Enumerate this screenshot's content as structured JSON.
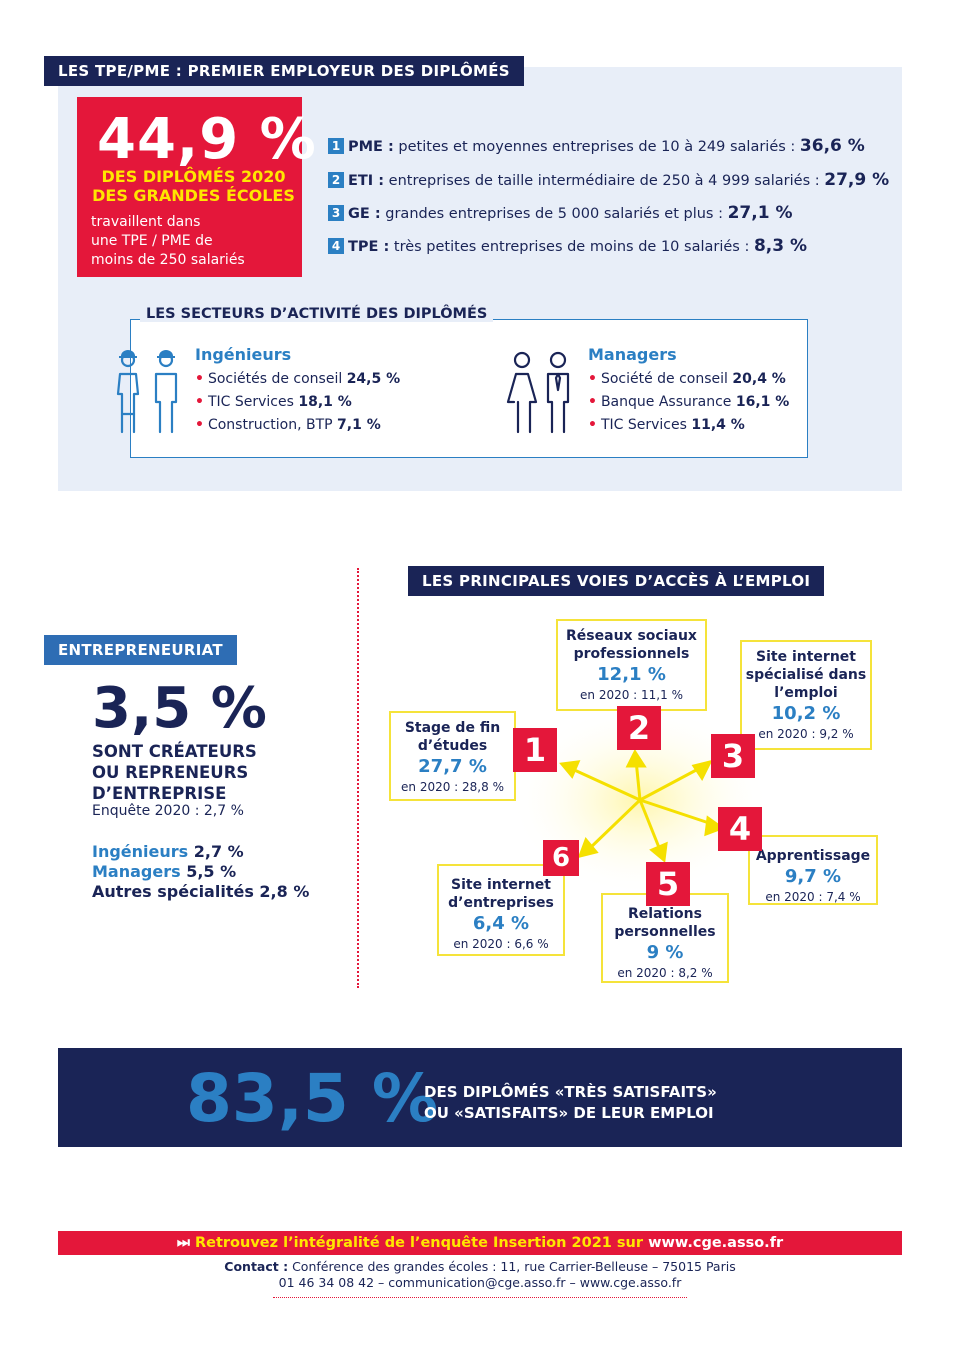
{
  "tpe_pme": {
    "title": "LES TPE/PME : PREMIER EMPLOYEUR DES DIPLÔMÉS",
    "headline_value": "44,9 %",
    "headline_sub": "DES DIPLÔMÉS 2020 DES GRANDES ÉCOLES",
    "headline_text_1": "travaillent dans",
    "headline_text_2": "une TPE / PME de",
    "headline_text_3": "moins de 250 salariés",
    "types": [
      {
        "rank": "1",
        "abbr": "PME :",
        "desc": "petites et moyennes entreprises de 10 à 249 salariés :",
        "value": "36,6 %"
      },
      {
        "rank": "2",
        "abbr": "ETI :",
        "desc": "entreprises de taille intermédiaire de 250 à 4 999 salariés :",
        "value": "27,9 %"
      },
      {
        "rank": "3",
        "abbr": "GE :",
        "desc": "grandes entreprises de 5 000 salariés et plus :",
        "value": "27,1 %"
      },
      {
        "rank": "4",
        "abbr": "TPE :",
        "desc": "très petites entreprises de moins de 10 salariés :",
        "value": "8,3 %"
      }
    ]
  },
  "sectors": {
    "title": "LES SECTEURS D’ACTIVITÉ DES DIPLÔMÉS",
    "engineers": {
      "label": "Ingénieurs",
      "items": [
        {
          "name": "Sociétés de conseil",
          "value": "24,5 %"
        },
        {
          "name": "TIC Services",
          "value": "18,1 %"
        },
        {
          "name": "Construction, BTP",
          "value": "7,1 %"
        }
      ]
    },
    "managers": {
      "label": "Managers",
      "items": [
        {
          "name": "Société de conseil",
          "value": "20,4 %"
        },
        {
          "name": "Banque Assurance",
          "value": "16,1 %"
        },
        {
          "name": "TIC Services",
          "value": "11,4 %"
        }
      ]
    }
  },
  "entrepreneurship": {
    "title": "ENTREPRENEURIAT",
    "value": "3,5 %",
    "sub_1": "SONT CRÉATEURS",
    "sub_2": "OU REPRENEURS",
    "sub_3": "D’ENTREPRISE",
    "survey": "Enquête 2020 : 2,7 %",
    "lines": [
      {
        "label": "Ingénieurs",
        "value": "2,7 %"
      },
      {
        "label": "Managers",
        "value": "5,5 %"
      },
      {
        "label": "Autres spécialités",
        "value": "2,8 %"
      }
    ]
  },
  "access": {
    "title": "LES PRINCIPALES VOIES D’ACCÈS À L’EMPLOI",
    "routes": [
      {
        "rank": "1",
        "label_1": "Stage de fin",
        "label_2": "d’études",
        "label_3": "",
        "value": "27,7 %",
        "prev": "en 2020 : 28,8 %"
      },
      {
        "rank": "2",
        "label_1": "Réseaux sociaux",
        "label_2": "professionnels",
        "label_3": "",
        "value": "12,1 %",
        "prev": "en 2020 : 11,1 %"
      },
      {
        "rank": "3",
        "label_1": "Site internet",
        "label_2": "spécialisé dans",
        "label_3": "l’emploi",
        "value": "10,2 %",
        "prev": "en 2020 : 9,2 %"
      },
      {
        "rank": "4",
        "label_1": "Apprentissage",
        "label_2": "",
        "label_3": "",
        "value": "9,7 %",
        "prev": "en 2020 : 7,4 %"
      },
      {
        "rank": "5",
        "label_1": "Relations",
        "label_2": "personnelles",
        "label_3": "",
        "value": "9 %",
        "prev": "en 2020 : 8,2 %"
      },
      {
        "rank": "6",
        "label_1": "Site internet",
        "label_2": "d’entreprises",
        "label_3": "",
        "value": "6,4 %",
        "prev": "en 2020 : 6,6 %"
      }
    ]
  },
  "satisfaction": {
    "value": "83,5 %",
    "text_1": "DES DIPLÔMÉS «TRÈS SATISFAITS»",
    "text_2": "OU «SATISFAITS» DE LEUR EMPLOI"
  },
  "footer": {
    "banner_text": "Retrouvez l’intégralité de l’enquête Insertion 2021 sur",
    "banner_url": "www.cge.asso.fr",
    "contact_label": "Contact :",
    "contact_address": "Conférence des grandes écoles : 11, rue Carrier-Belleuse – 75015 Paris",
    "contact_line2": "01 46 34 08 42 – communication@cge.asso.fr – www.cge.asso.fr"
  },
  "colors": {
    "navy": "#1a2456",
    "red": "#e4173a",
    "blue": "#2b7fc3",
    "yellow": "#f5e33a",
    "light_bg": "#e8eef8"
  }
}
